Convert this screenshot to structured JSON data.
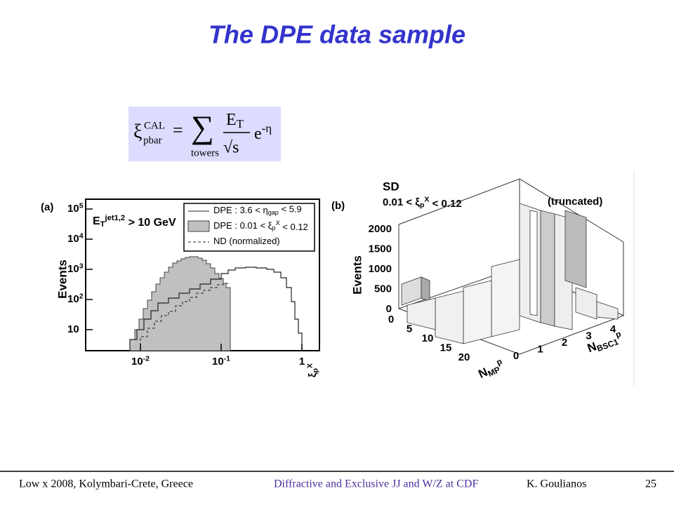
{
  "title": "The DPE data sample",
  "formula": {
    "xi": "ξ",
    "sup": "CAL",
    "sub": "pbar",
    "eq": "=",
    "sum": "∑",
    "under": "towers",
    "num": [
      {
        "text": "E"
      },
      {
        "text": "T",
        "pos": "sub"
      }
    ],
    "den": "√s",
    "exp": [
      {
        "text": "e"
      },
      {
        "text": "-η",
        "pos": "sup"
      }
    ]
  },
  "figure_a": {
    "label": "(a)",
    "ylabel": "Events",
    "yticks": [
      [
        {
          "text": "10"
        },
        {
          "text": "5",
          "pos": "sup"
        }
      ],
      [
        {
          "text": "10"
        },
        {
          "text": "4",
          "pos": "sup"
        }
      ],
      [
        {
          "text": "10"
        },
        {
          "text": "3",
          "pos": "sup"
        }
      ],
      [
        {
          "text": "10"
        },
        {
          "text": "2",
          "pos": "sup"
        }
      ],
      [
        {
          "text": "10"
        }
      ]
    ],
    "xticks": [
      [
        {
          "text": "10"
        },
        {
          "text": "-2",
          "pos": "sup"
        }
      ],
      [
        {
          "text": "10"
        },
        {
          "text": "-1",
          "pos": "sup"
        }
      ],
      [
        {
          "text": "1"
        }
      ]
    ],
    "xlabel": [
      {
        "text": "ξ"
      },
      {
        "text": "p",
        "pos": "sub"
      },
      {
        "text": "X",
        "pos": "sup"
      }
    ],
    "cut": [
      {
        "text": "E"
      },
      {
        "text": "T",
        "pos": "sub"
      },
      {
        "text": "jet1,2",
        "pos": "sup"
      },
      {
        "text": " > 10 GeV"
      }
    ],
    "legend": [
      [
        {
          "text": "DPE : 3.6 < η"
        },
        {
          "text": "gap",
          "pos": "sub"
        },
        {
          "text": " < 5.9"
        }
      ],
      [
        {
          "text": "DPE : 0.01 < ξ"
        },
        {
          "text": "p",
          "pos": "sub"
        },
        {
          "text": "X",
          "pos": "sup"
        },
        {
          "text": " < 0.12"
        }
      ],
      [
        {
          "text": "ND (normalized)"
        }
      ]
    ]
  },
  "figure_b": {
    "label": "(b)",
    "heading": "SD",
    "range": [
      {
        "text": "0.01 < ξ"
      },
      {
        "text": "p",
        "pos": "sub"
      },
      {
        "text": "X",
        "pos": "sup"
      },
      {
        "text": " < 0.12"
      }
    ],
    "note": "(truncated)",
    "zlabel": "Events",
    "zticks": [
      2000,
      1500,
      1000,
      500,
      0
    ],
    "mp_ticks": [
      0,
      5,
      10,
      15,
      20
    ],
    "bsc_ticks": [
      0,
      1,
      2,
      3,
      4
    ],
    "mp_label": [
      {
        "text": "N"
      },
      {
        "text": "MP",
        "pos": "sub"
      },
      {
        "text": "p",
        "pos": "sup"
      }
    ],
    "bsc_label": [
      {
        "text": "N"
      },
      {
        "text": "BSC1",
        "pos": "sub"
      },
      {
        "text": "p",
        "pos": "sup"
      }
    ]
  },
  "footer": {
    "venue": "Low x 2008, Kolymbari-Crete, Greece",
    "talk": "Diffractive and Exclusive JJ and W/Z at CDF",
    "author": "K.  Goulianos",
    "page": "25"
  }
}
